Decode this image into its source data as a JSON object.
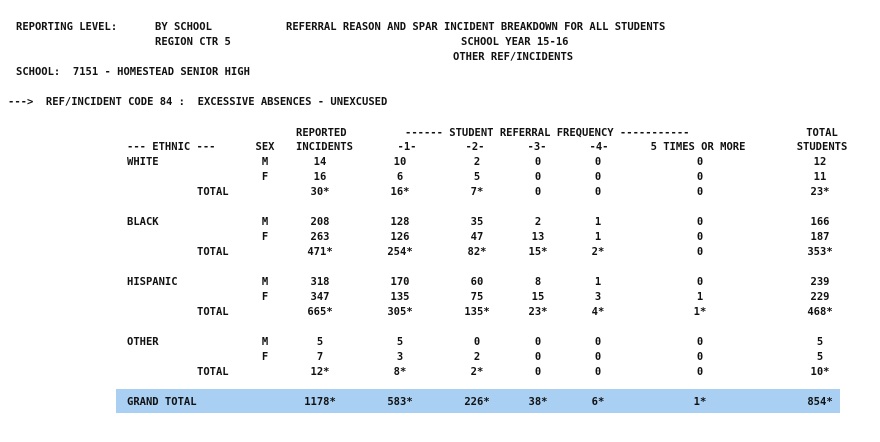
{
  "header": {
    "reporting_level_label": "REPORTING LEVEL:",
    "reporting_level_value": "BY SCHOOL",
    "region": "REGION CTR 5",
    "title": "REFERRAL REASON AND SPAR INCIDENT BREAKDOWN FOR ALL STUDENTS",
    "school_year": "SCHOOL YEAR 15-16",
    "subtitle": "OTHER REF/INCIDENTS",
    "school": "SCHOOL:  7151 - HOMESTEAD SENIOR HIGH",
    "incident_code": "--->  REF/INCIDENT CODE 84 :  EXCESSIVE ABSENCES - UNEXCUSED"
  },
  "columns": {
    "reported_top": "REPORTED",
    "reported_bottom": "INCIDENTS",
    "frequency_banner": "------ STUDENT REFERRAL FREQUENCY -----------",
    "ethnic": "--- ETHNIC ---",
    "sex": "SEX",
    "f1": "-1-",
    "f2": "-2-",
    "f3": "-3-",
    "f4": "-4-",
    "f5": "5 TIMES OR MORE",
    "total_top": "TOTAL",
    "total_bottom": "STUDENTS"
  },
  "groups": [
    {
      "name": "WHITE",
      "rows": [
        {
          "sex": "M",
          "values": [
            "14",
            "10",
            "2",
            "0",
            "0",
            "0",
            "12"
          ]
        },
        {
          "sex": "F",
          "values": [
            "16",
            "6",
            "5",
            "0",
            "0",
            "0",
            "11"
          ]
        }
      ],
      "total_label": "TOTAL",
      "total": [
        "30*",
        "16*",
        "7*",
        "0",
        "0",
        "0",
        "23*"
      ]
    },
    {
      "name": "BLACK",
      "rows": [
        {
          "sex": "M",
          "values": [
            "208",
            "128",
            "35",
            "2",
            "1",
            "0",
            "166"
          ]
        },
        {
          "sex": "F",
          "values": [
            "263",
            "126",
            "47",
            "13",
            "1",
            "0",
            "187"
          ]
        }
      ],
      "total_label": "TOTAL",
      "total": [
        "471*",
        "254*",
        "82*",
        "15*",
        "2*",
        "0",
        "353*"
      ]
    },
    {
      "name": "HISPANIC",
      "rows": [
        {
          "sex": "M",
          "values": [
            "318",
            "170",
            "60",
            "8",
            "1",
            "0",
            "239"
          ]
        },
        {
          "sex": "F",
          "values": [
            "347",
            "135",
            "75",
            "15",
            "3",
            "1",
            "229"
          ]
        }
      ],
      "total_label": "TOTAL",
      "total": [
        "665*",
        "305*",
        "135*",
        "23*",
        "4*",
        "1*",
        "468*"
      ]
    },
    {
      "name": "OTHER",
      "rows": [
        {
          "sex": "M",
          "values": [
            "5",
            "5",
            "0",
            "0",
            "0",
            "0",
            "5"
          ]
        },
        {
          "sex": "F",
          "values": [
            "7",
            "3",
            "2",
            "0",
            "0",
            "0",
            "5"
          ]
        }
      ],
      "total_label": "TOTAL",
      "total": [
        "12*",
        "8*",
        "2*",
        "0",
        "0",
        "0",
        "10*"
      ]
    }
  ],
  "grand_total": {
    "label": "GRAND TOTAL",
    "values": [
      "1178*",
      "583*",
      "226*",
      "38*",
      "6*",
      "1*",
      "854*"
    ]
  },
  "colors": {
    "highlight": "#a9cff3",
    "text": "#111111"
  }
}
